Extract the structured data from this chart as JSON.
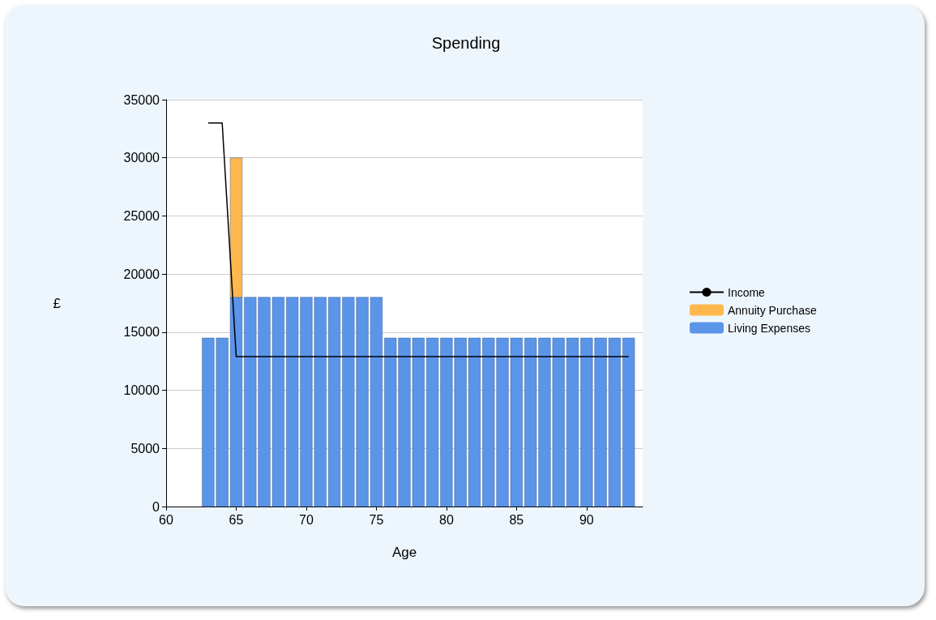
{
  "chart_data": {
    "type": "bar",
    "title": "Spending",
    "xlabel": "Age",
    "ylabel": "£",
    "stacked": true,
    "x": [
      63,
      64,
      65,
      66,
      67,
      68,
      69,
      70,
      71,
      72,
      73,
      74,
      75,
      76,
      77,
      78,
      79,
      80,
      81,
      82,
      83,
      84,
      85,
      86,
      87,
      88,
      89,
      90,
      91,
      92,
      93
    ],
    "series": [
      {
        "name": "Living Expenses",
        "color": "#5b95ea",
        "values": [
          14500,
          14500,
          18000,
          18000,
          18000,
          18000,
          18000,
          18000,
          18000,
          18000,
          18000,
          18000,
          18000,
          14500,
          14500,
          14500,
          14500,
          14500,
          14500,
          14500,
          14500,
          14500,
          14500,
          14500,
          14500,
          14500,
          14500,
          14500,
          14500,
          14500,
          14500
        ]
      },
      {
        "name": "Annuity Purchase",
        "color": "#ffb84d",
        "values": [
          null,
          null,
          12000,
          null,
          null,
          null,
          null,
          null,
          null,
          null,
          null,
          null,
          null,
          null,
          null,
          null,
          null,
          null,
          null,
          null,
          null,
          null,
          null,
          null,
          null,
          null,
          null,
          null,
          null,
          null,
          null
        ]
      },
      {
        "name": "Income",
        "type": "line",
        "color": "#000000",
        "values": [
          33000,
          33000,
          12900,
          12900,
          12900,
          12900,
          12900,
          12900,
          12900,
          12900,
          12900,
          12900,
          12900,
          12900,
          12900,
          12900,
          12900,
          12900,
          12900,
          12900,
          12900,
          12900,
          12900,
          12900,
          12900,
          12900,
          12900,
          12900,
          12900,
          12900,
          12900
        ]
      }
    ],
    "xlim": [
      60,
      94
    ],
    "xticks": [
      60,
      65,
      70,
      75,
      80,
      85,
      90
    ],
    "ylim": [
      0,
      35000
    ],
    "yticks": [
      0,
      5000,
      10000,
      15000,
      20000,
      25000,
      30000,
      35000
    ],
    "grid": "y",
    "legend": "right",
    "marker": "none",
    "line_style": "solid"
  }
}
